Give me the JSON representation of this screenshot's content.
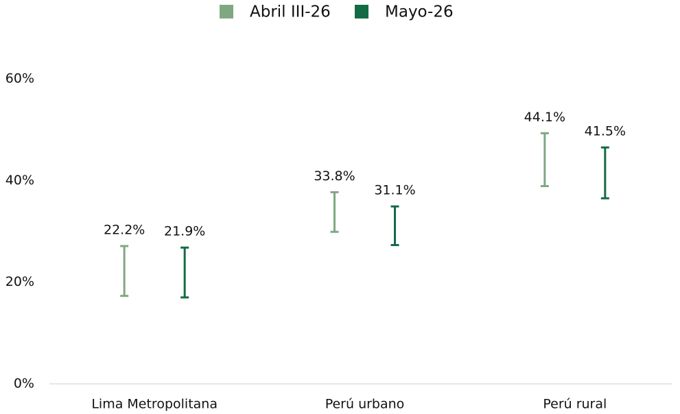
{
  "chart_data": {
    "type": "errorbar",
    "categories": [
      "Lima Metropolitana",
      "Perú urbano",
      "Perú rural"
    ],
    "series": [
      {
        "name": "Abril III-26",
        "color": "#7fa882",
        "values": [
          22.2,
          33.8,
          44.1
        ],
        "value_labels": [
          "22.2%",
          "33.8%",
          "44.1%"
        ],
        "errors": [
          4.9,
          3.9,
          5.2
        ]
      },
      {
        "name": "Mayo-26",
        "color": "#136b45",
        "values": [
          21.9,
          31.1,
          41.5
        ],
        "value_labels": [
          "21.9%",
          "31.1%",
          "41.5%"
        ],
        "errors": [
          4.9,
          3.8,
          5.0
        ]
      }
    ],
    "ylim": [
      0,
      60
    ],
    "yticks": [
      {
        "value": 0,
        "label": "0%"
      },
      {
        "value": 20,
        "label": "20%"
      },
      {
        "value": 40,
        "label": "40%"
      },
      {
        "value": 60,
        "label": "60%"
      }
    ],
    "grid": false,
    "legend": "top"
  }
}
